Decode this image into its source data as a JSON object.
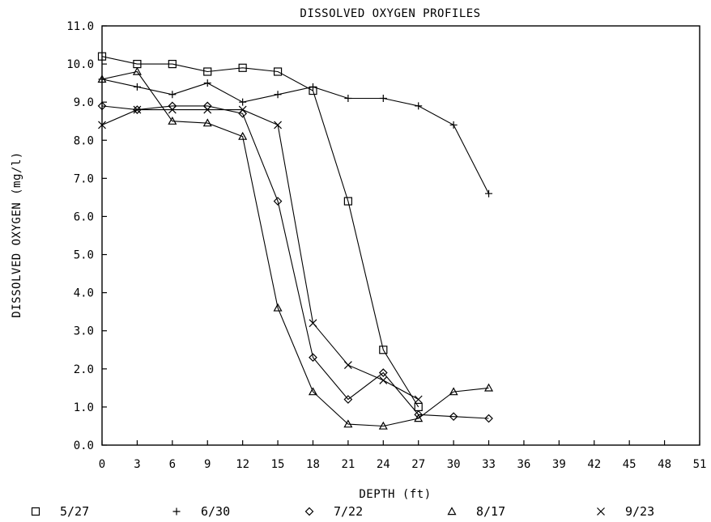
{
  "chart_data": {
    "type": "line",
    "title": "DISSOLVED OXYGEN PROFILES",
    "xlabel": "DEPTH (ft)",
    "ylabel": "DISSOLVED OXYGEN (mg/l)",
    "xlim": [
      0,
      51
    ],
    "ylim": [
      0,
      11
    ],
    "x_ticks": [
      "0",
      "3",
      "6",
      "9",
      "12",
      "15",
      "18",
      "21",
      "24",
      "27",
      "30",
      "33",
      "36",
      "39",
      "42",
      "45",
      "48",
      "51"
    ],
    "y_ticks": [
      "0.0",
      "1.0",
      "2.0",
      "3.0",
      "4.0",
      "5.0",
      "6.0",
      "7.0",
      "8.0",
      "9.0",
      "10.0",
      "11.0"
    ],
    "grid": false,
    "legend_position": "bottom",
    "series": [
      {
        "name": "5/27",
        "marker": "square",
        "points": [
          [
            0,
            10.2
          ],
          [
            3,
            10.0
          ],
          [
            6,
            10.0
          ],
          [
            9,
            9.8
          ],
          [
            12,
            9.9
          ],
          [
            15,
            9.8
          ],
          [
            18,
            9.3
          ],
          [
            21,
            6.4
          ],
          [
            24,
            2.5
          ],
          [
            27,
            1.0
          ]
        ]
      },
      {
        "name": "6/30",
        "marker": "plus",
        "points": [
          [
            0,
            9.6
          ],
          [
            3,
            9.4
          ],
          [
            6,
            9.2
          ],
          [
            9,
            9.5
          ],
          [
            12,
            9.0
          ],
          [
            15,
            9.2
          ],
          [
            18,
            9.4
          ],
          [
            21,
            9.1
          ],
          [
            24,
            9.1
          ],
          [
            27,
            8.9
          ],
          [
            30,
            8.4
          ],
          [
            33,
            6.6
          ]
        ]
      },
      {
        "name": "7/22",
        "marker": "diamond",
        "points": [
          [
            0,
            8.9
          ],
          [
            3,
            8.8
          ],
          [
            6,
            8.9
          ],
          [
            9,
            8.9
          ],
          [
            12,
            8.7
          ],
          [
            15,
            6.4
          ],
          [
            18,
            2.3
          ],
          [
            21,
            1.2
          ],
          [
            24,
            1.9
          ],
          [
            27,
            0.8
          ],
          [
            30,
            0.75
          ],
          [
            33,
            0.7
          ]
        ]
      },
      {
        "name": "8/17",
        "marker": "triangle",
        "points": [
          [
            0,
            9.6
          ],
          [
            3,
            9.8
          ],
          [
            6,
            8.5
          ],
          [
            9,
            8.45
          ],
          [
            12,
            8.1
          ],
          [
            15,
            3.6
          ],
          [
            18,
            1.4
          ],
          [
            21,
            0.55
          ],
          [
            24,
            0.5
          ],
          [
            27,
            0.7
          ],
          [
            30,
            1.4
          ],
          [
            33,
            1.5
          ]
        ]
      },
      {
        "name": "9/23",
        "marker": "x",
        "points": [
          [
            0,
            8.4
          ],
          [
            3,
            8.8
          ],
          [
            6,
            8.8
          ],
          [
            9,
            8.8
          ],
          [
            12,
            8.8
          ],
          [
            15,
            8.4
          ],
          [
            18,
            3.2
          ],
          [
            21,
            2.1
          ],
          [
            24,
            1.7
          ],
          [
            27,
            1.2
          ]
        ]
      }
    ]
  }
}
